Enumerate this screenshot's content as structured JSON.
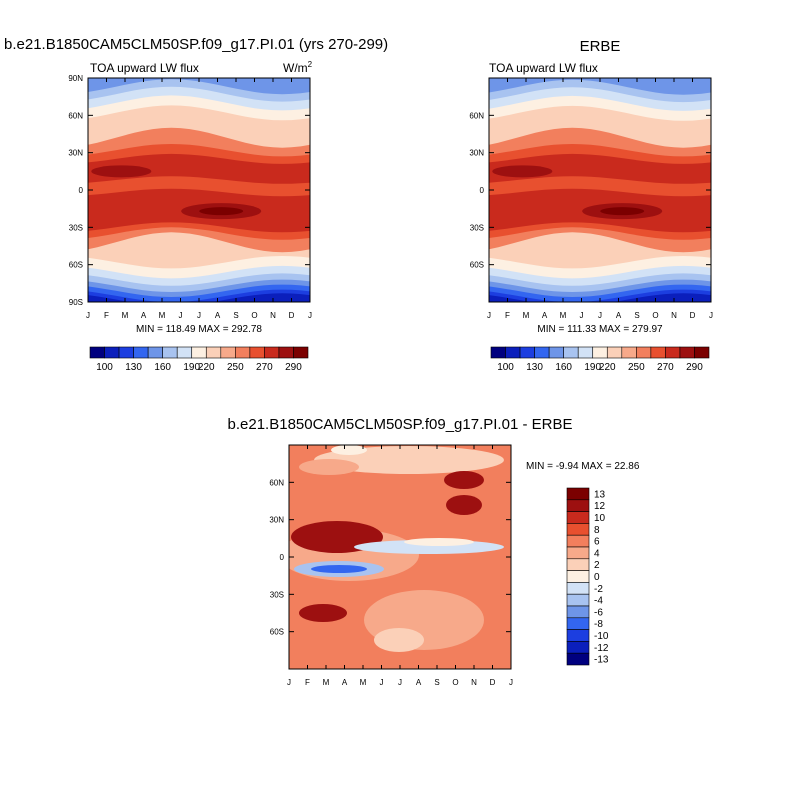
{
  "palette": {
    "colors": [
      "#00007f",
      "#0b1fbc",
      "#1c3ee0",
      "#3366f0",
      "#6e95e8",
      "#a8c3f0",
      "#d2e2f6",
      "#fdf0e2",
      "#fbd0b8",
      "#f7a98a",
      "#f27f5d",
      "#e8502f",
      "#c92a1d",
      "#9d1010",
      "#7b0000"
    ]
  },
  "panels": {
    "model": {
      "title": "b.e21.B1850CAM5CLM50SP.f09_g17.PI.01 (yrs 270-299)",
      "left_label": "TOA upward LW flux",
      "units_base": "W/m",
      "units_exp": "2",
      "stats": "MIN = 118.49 MAX = 292.78"
    },
    "obs": {
      "title": "ERBE",
      "left_label": "TOA upward LW flux",
      "stats": "MIN = 111.33 MAX = 279.97"
    },
    "diff": {
      "title": "b.e21.B1850CAM5CLM50SP.f09_g17.PI.01 - ERBE",
      "stats": "MIN =  -9.94 MAX =  22.86"
    }
  },
  "chart_data": [
    {
      "type": "heatmap",
      "title": "TOA upward LW flux",
      "units": "W/m2",
      "x_ticks": [
        "J",
        "F",
        "M",
        "A",
        "M",
        "J",
        "J",
        "A",
        "S",
        "O",
        "N",
        "D",
        "J"
      ],
      "y_ticks": [
        "90N",
        "60N",
        "30N",
        "0",
        "30S",
        "60S",
        "90S"
      ],
      "ylim": [
        -90,
        90
      ],
      "min": 118.49,
      "max": 292.78,
      "colorbar_labels": [
        "100",
        "130",
        "160",
        "190",
        "220",
        "250",
        "270",
        "290"
      ]
    },
    {
      "type": "heatmap",
      "title": "TOA upward LW flux",
      "x_ticks": [
        "J",
        "F",
        "M",
        "A",
        "M",
        "J",
        "J",
        "A",
        "S",
        "O",
        "N",
        "D",
        "J"
      ],
      "y_ticks": [
        "60N",
        "30N",
        "0",
        "30S",
        "60S"
      ],
      "ylim": [
        -90,
        90
      ],
      "min": 111.33,
      "max": 279.97,
      "colorbar_labels": [
        "100",
        "130",
        "160",
        "190",
        "220",
        "250",
        "270",
        "290"
      ]
    },
    {
      "type": "heatmap",
      "title": "b.e21.B1850CAM5CLM50SP.f09_g17.PI.01 - ERBE",
      "x_ticks": [
        "J",
        "F",
        "M",
        "A",
        "M",
        "J",
        "J",
        "A",
        "S",
        "O",
        "N",
        "D",
        "J"
      ],
      "y_ticks": [
        "60N",
        "30N",
        "0",
        "30S",
        "60S"
      ],
      "ylim": [
        -90,
        90
      ],
      "min": -9.94,
      "max": 22.86,
      "colorbar_labels": [
        "13",
        "12",
        "10",
        "8",
        "6",
        "4",
        "2",
        "0",
        "-2",
        "-4",
        "-6",
        "-8",
        "-10",
        "-12",
        "-13"
      ]
    }
  ]
}
